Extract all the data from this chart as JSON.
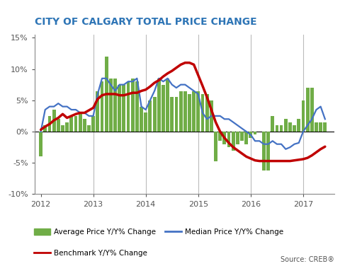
{
  "title": "CITY OF CALGARY TOTAL PRICE CHANGE",
  "title_color": "#2E75B6",
  "ylim": [
    -0.1,
    0.155
  ],
  "yticks": [
    -0.1,
    -0.05,
    0.0,
    0.05,
    0.1,
    0.15
  ],
  "ytick_labels": [
    "-10%",
    "-5%",
    "0%",
    "5%",
    "10%",
    "15%"
  ],
  "source_text": "Source: CREB®",
  "legend_labels": [
    "Average Price Y/Y% Change",
    "Median Price Y/Y% Change",
    "Benchmark Y/Y% Change"
  ],
  "bar_color": "#70AD47",
  "median_color": "#4472C4",
  "benchmark_color": "#C00000",
  "bar_width": 0.065,
  "months": [
    2012.0,
    2012.083,
    2012.167,
    2012.25,
    2012.333,
    2012.417,
    2012.5,
    2012.583,
    2012.667,
    2012.75,
    2012.833,
    2012.917,
    2013.0,
    2013.083,
    2013.167,
    2013.25,
    2013.333,
    2013.417,
    2013.5,
    2013.583,
    2013.667,
    2013.75,
    2013.833,
    2013.917,
    2014.0,
    2014.083,
    2014.167,
    2014.25,
    2014.333,
    2014.417,
    2014.5,
    2014.583,
    2014.667,
    2014.75,
    2014.833,
    2014.917,
    2015.0,
    2015.083,
    2015.167,
    2015.25,
    2015.333,
    2015.417,
    2015.5,
    2015.583,
    2015.667,
    2015.75,
    2015.833,
    2015.917,
    2016.0,
    2016.083,
    2016.167,
    2016.25,
    2016.333,
    2016.417,
    2016.5,
    2016.583,
    2016.667,
    2016.75,
    2016.833,
    2016.917,
    2017.0,
    2017.083,
    2017.167,
    2017.25,
    2017.333,
    2017.417
  ],
  "avg_price": [
    -0.04,
    0.01,
    0.025,
    0.035,
    0.02,
    0.01,
    0.015,
    0.025,
    0.025,
    0.03,
    0.02,
    0.01,
    0.025,
    0.065,
    0.08,
    0.12,
    0.085,
    0.085,
    0.075,
    0.075,
    0.08,
    0.085,
    0.08,
    0.04,
    0.03,
    0.05,
    0.055,
    0.085,
    0.075,
    0.085,
    0.055,
    0.055,
    0.065,
    0.065,
    0.06,
    0.065,
    0.065,
    0.06,
    0.06,
    0.05,
    -0.048,
    -0.015,
    -0.02,
    -0.025,
    -0.03,
    -0.02,
    -0.015,
    -0.02,
    -0.01,
    -0.005,
    0.0,
    -0.062,
    -0.062,
    0.025,
    0.01,
    0.01,
    0.02,
    0.015,
    0.01,
    0.02,
    0.05,
    0.07,
    0.07,
    0.015,
    0.015,
    0.015
  ],
  "median_price": [
    0.0,
    0.035,
    0.04,
    0.04,
    0.045,
    0.04,
    0.04,
    0.035,
    0.035,
    0.03,
    0.03,
    0.025,
    0.025,
    0.06,
    0.085,
    0.085,
    0.075,
    0.065,
    0.075,
    0.075,
    0.08,
    0.08,
    0.085,
    0.04,
    0.035,
    0.05,
    0.065,
    0.085,
    0.08,
    0.085,
    0.075,
    0.07,
    0.075,
    0.075,
    0.07,
    0.065,
    0.06,
    0.03,
    0.02,
    0.025,
    0.025,
    0.025,
    0.02,
    0.02,
    0.015,
    0.01,
    0.005,
    0.0,
    -0.005,
    -0.015,
    -0.015,
    -0.02,
    -0.02,
    -0.015,
    -0.02,
    -0.02,
    -0.028,
    -0.025,
    -0.02,
    -0.018,
    0.0,
    0.01,
    0.02,
    0.035,
    0.04,
    0.02
  ],
  "benchmark": [
    0.003,
    0.008,
    0.012,
    0.018,
    0.022,
    0.028,
    0.022,
    0.025,
    0.028,
    0.03,
    0.03,
    0.034,
    0.038,
    0.052,
    0.058,
    0.06,
    0.06,
    0.06,
    0.058,
    0.058,
    0.06,
    0.062,
    0.062,
    0.065,
    0.067,
    0.072,
    0.078,
    0.082,
    0.088,
    0.093,
    0.097,
    0.102,
    0.107,
    0.11,
    0.11,
    0.107,
    0.09,
    0.073,
    0.055,
    0.035,
    0.015,
    0.0,
    -0.01,
    -0.018,
    -0.025,
    -0.03,
    -0.035,
    -0.04,
    -0.043,
    -0.046,
    -0.047,
    -0.047,
    -0.047,
    -0.047,
    -0.047,
    -0.047,
    -0.047,
    -0.047,
    -0.046,
    -0.045,
    -0.044,
    -0.042,
    -0.038,
    -0.033,
    -0.028,
    -0.024
  ],
  "vline_positions": [
    2013,
    2014,
    2015,
    2016,
    2017
  ],
  "background_color": "#FFFFFF",
  "grid_color": "#BBBBBB",
  "spine_color": "#888888"
}
